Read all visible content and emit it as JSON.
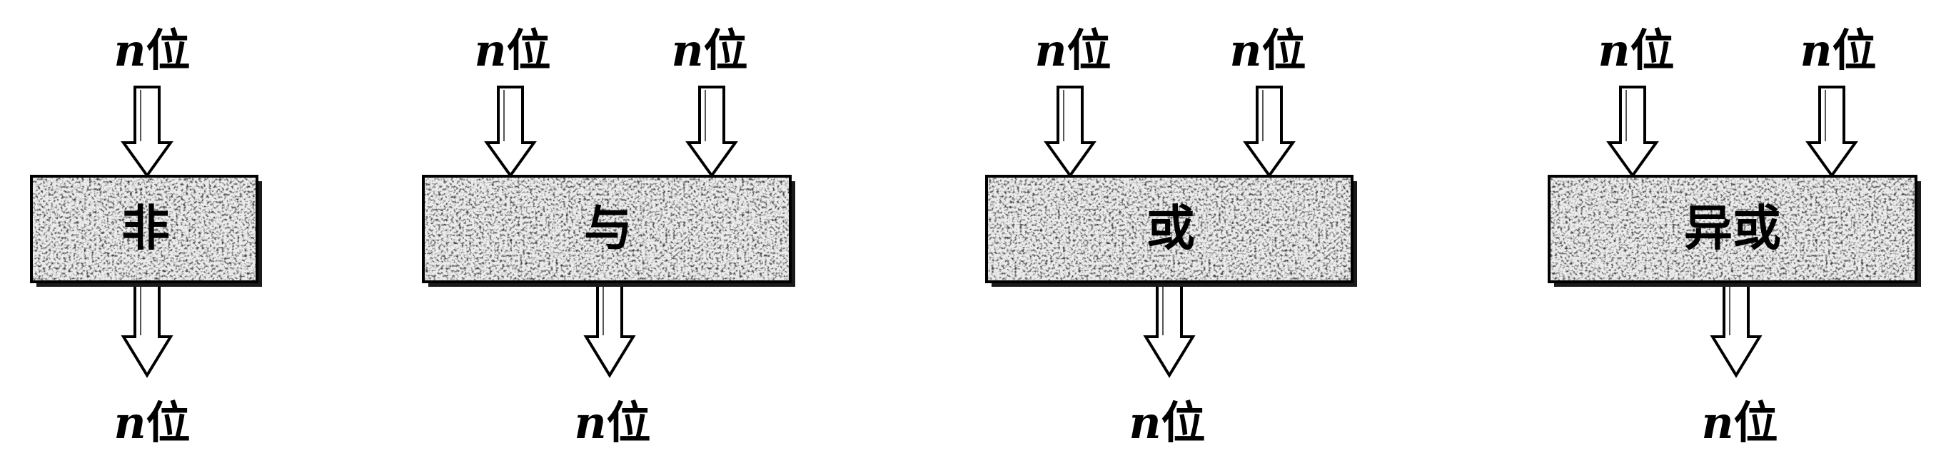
{
  "gates": [
    {
      "label": "非",
      "inputs": [
        {
          "var": "n",
          "unit": "位"
        }
      ],
      "output": {
        "var": "n",
        "unit": "位"
      }
    },
    {
      "label": "与",
      "inputs": [
        {
          "var": "n",
          "unit": "位"
        },
        {
          "var": "n",
          "unit": "位"
        }
      ],
      "output": {
        "var": "n",
        "unit": "位"
      }
    },
    {
      "label": "或",
      "inputs": [
        {
          "var": "n",
          "unit": "位"
        },
        {
          "var": "n",
          "unit": "位"
        }
      ],
      "output": {
        "var": "n",
        "unit": "位"
      }
    },
    {
      "label": "异或",
      "inputs": [
        {
          "var": "n",
          "unit": "位"
        },
        {
          "var": "n",
          "unit": "位"
        }
      ],
      "output": {
        "var": "n",
        "unit": "位"
      }
    }
  ]
}
